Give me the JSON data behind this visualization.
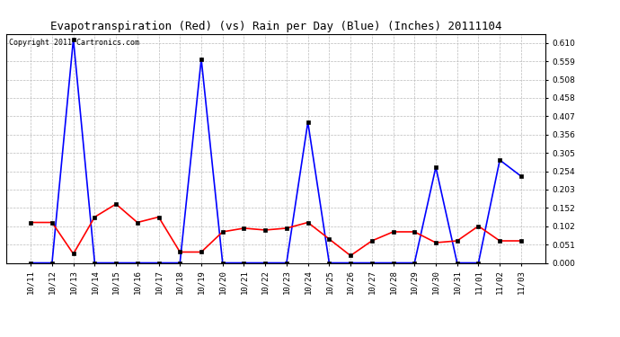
{
  "title": "Evapotranspiration (Red) (vs) Rain per Day (Blue) (Inches) 20111104",
  "copyright_text": "Copyright 2011 Cartronics.com",
  "x_labels": [
    "10/11",
    "10/12",
    "10/13",
    "10/14",
    "10/15",
    "10/16",
    "10/17",
    "10/18",
    "10/19",
    "10/20",
    "10/21",
    "10/22",
    "10/23",
    "10/24",
    "10/25",
    "10/26",
    "10/27",
    "10/28",
    "10/29",
    "10/30",
    "10/31",
    "11/01",
    "11/02",
    "11/03"
  ],
  "blue_rain": [
    0.0,
    0.0,
    0.62,
    0.0,
    0.0,
    0.0,
    0.0,
    0.0,
    0.565,
    0.0,
    0.0,
    0.0,
    0.0,
    0.39,
    0.0,
    0.0,
    0.0,
    0.0,
    0.0,
    0.265,
    0.0,
    0.0,
    0.285,
    0.24
  ],
  "red_et": [
    0.112,
    0.112,
    0.025,
    0.127,
    0.163,
    0.112,
    0.127,
    0.03,
    0.03,
    0.086,
    0.096,
    0.091,
    0.096,
    0.112,
    0.066,
    0.02,
    0.061,
    0.086,
    0.086,
    0.056,
    0.061,
    0.102,
    0.061,
    0.061
  ],
  "ylim_min": 0.0,
  "ylim_max": 0.635,
  "yticks": [
    0.0,
    0.051,
    0.102,
    0.152,
    0.203,
    0.254,
    0.305,
    0.356,
    0.407,
    0.458,
    0.508,
    0.559,
    0.61
  ],
  "blue_color": "#0000FF",
  "red_color": "#FF0000",
  "bg_color": "#FFFFFF",
  "grid_color": "#BBBBBB",
  "title_fontsize": 9,
  "copyright_fontsize": 6,
  "tick_fontsize": 6.5
}
